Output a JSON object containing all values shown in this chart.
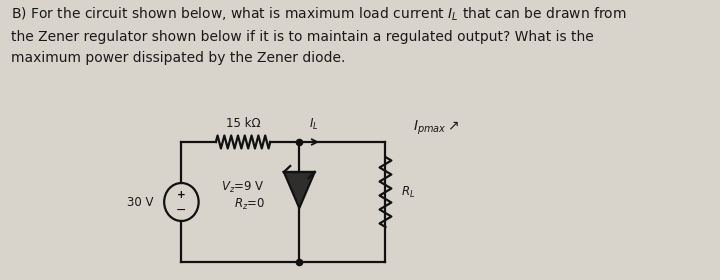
{
  "bg_color": "#d8d4cc",
  "text_color": "#1a1a1a",
  "question_text": "B) For the circuit shown below, what is maximum load current $I_L$ that can be drawn from\nthe Zener regulator shown below if it is to maintain a regulated output? What is the\nmaximum power dissipated by the Zener diode.",
  "resistor_label": "15 kΩ",
  "voltage_label": "30 V",
  "zener_label1": "$V_z$=9 V",
  "zener_label2": "$R_z$=0",
  "il_label": "$I_L$",
  "imax_label": "$I_{pmax}$\\u2197",
  "rl_label": "$R_L$",
  "font_size_text": 10.0,
  "font_size_circuit": 8.5
}
